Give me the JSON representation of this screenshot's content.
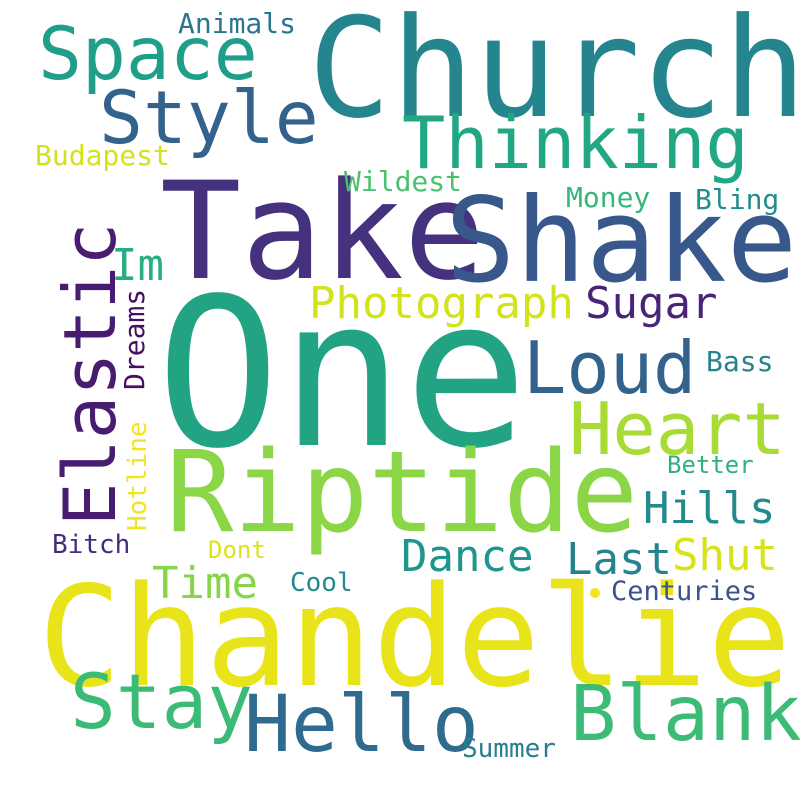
{
  "words": [
    {
      "text": "One",
      "color": "#22a384"
    },
    {
      "text": "Chandelier",
      "color": "#e8e419"
    },
    {
      "text": "Take",
      "color": "#46317e"
    },
    {
      "text": "Shake",
      "color": "#38588c"
    },
    {
      "text": "Church",
      "color": "#25858e"
    },
    {
      "text": "Riptide",
      "color": "#8bd646"
    },
    {
      "text": "Elastic",
      "color": "#481d6f"
    },
    {
      "text": "Hello",
      "color": "#2f6b8e"
    },
    {
      "text": "Blank",
      "color": "#3bbb75"
    },
    {
      "text": "Stay",
      "color": "#3bbb75"
    },
    {
      "text": "Space",
      "color": "#1f9e89"
    },
    {
      "text": "Style",
      "color": "#33628d"
    },
    {
      "text": "Thinking",
      "color": "#22a785"
    },
    {
      "text": "Heart",
      "color": "#a8db34"
    },
    {
      "text": "Loud",
      "color": "#33638d"
    },
    {
      "text": "Photograph",
      "color": "#d2e21b"
    },
    {
      "text": "Sugar",
      "color": "#482576"
    },
    {
      "text": "Im",
      "color": "#28ae80"
    },
    {
      "text": "Hills",
      "color": "#238a8d"
    },
    {
      "text": "Dance",
      "color": "#1f968b"
    },
    {
      "text": "Last",
      "color": "#26828e"
    },
    {
      "text": "Shut",
      "color": "#d8e219"
    },
    {
      "text": "Time",
      "color": "#86d549"
    },
    {
      "text": "Dreams",
      "color": "#471063"
    },
    {
      "text": "Animals",
      "color": "#2a768e"
    },
    {
      "text": "Budapest",
      "color": "#d2e21b"
    },
    {
      "text": "Wildest",
      "color": "#4ac16d"
    },
    {
      "text": "Money",
      "color": "#35b779"
    },
    {
      "text": "Bling",
      "color": "#228d8d"
    },
    {
      "text": "Bass",
      "color": "#25838e"
    },
    {
      "text": "Better",
      "color": "#2db27d"
    },
    {
      "text": "Hotline",
      "color": "#f1e51d"
    },
    {
      "text": "Bitch",
      "color": "#472c7a"
    },
    {
      "text": "Dont",
      "color": "#dde318"
    },
    {
      "text": "Cool",
      "color": "#23898e"
    },
    {
      "text": "Centuries",
      "color": "#3b528b"
    },
    {
      "text": "Summer",
      "color": "#287d8e"
    }
  ],
  "accent_dot_color": "#f1e51d"
}
